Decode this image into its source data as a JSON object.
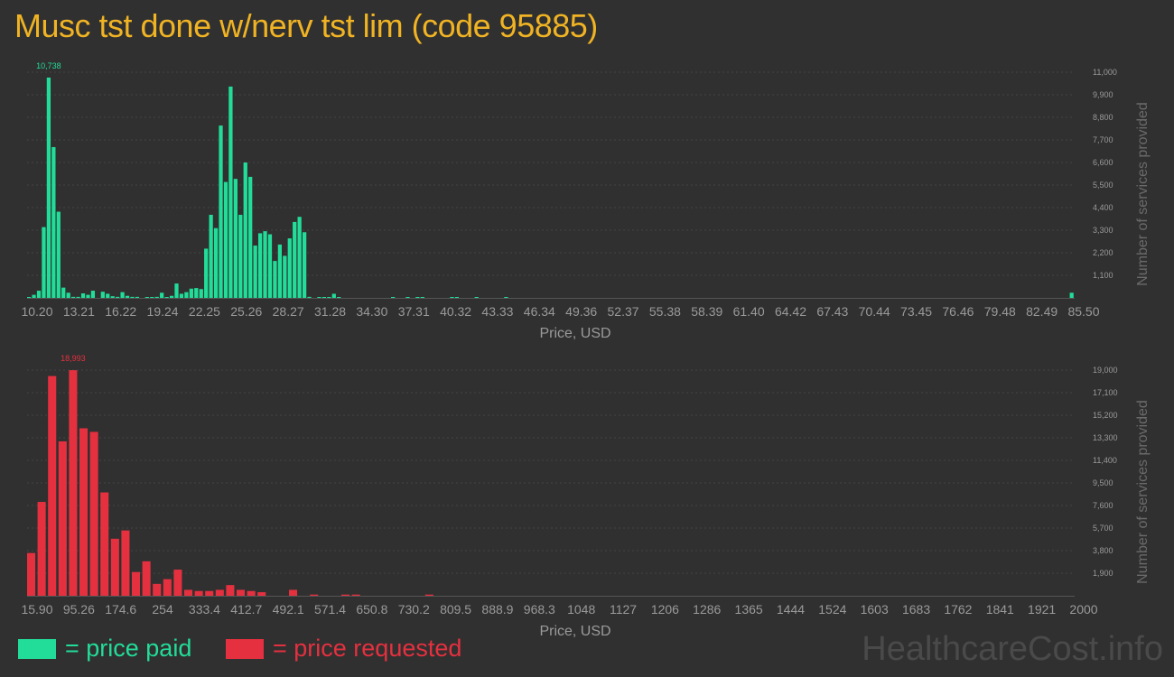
{
  "title": "Musc tst done w/nerv tst lim (code 95885)",
  "legend": {
    "paid_label": "= price paid",
    "requested_label": "= price requested"
  },
  "watermark": "HealthcareCost.info",
  "colors": {
    "background": "#303030",
    "title": "#f0b323",
    "paid": "#22dd99",
    "requested": "#e5303f",
    "axis_text": "#9a9a9a",
    "grid": "#444444"
  },
  "chart_data": [
    {
      "type": "bar",
      "name": "paid",
      "xlabel": "Price, USD",
      "ylabel": "Number of services provided",
      "ylim": [
        0,
        11000
      ],
      "y_ticks": [
        "1,100",
        "2,200",
        "3,300",
        "4,400",
        "5,500",
        "6,600",
        "7,700",
        "8,800",
        "9,900",
        "11,000"
      ],
      "x_ticks": [
        "10.20",
        "13.21",
        "16.22",
        "19.24",
        "22.25",
        "25.26",
        "28.27",
        "31.28",
        "34.30",
        "37.31",
        "40.32",
        "43.33",
        "46.34",
        "49.36",
        "52.37",
        "55.38",
        "58.39",
        "61.40",
        "64.42",
        "67.43",
        "70.44",
        "73.45",
        "76.46",
        "79.48",
        "82.49",
        "85.50"
      ],
      "peak_label": "10,738",
      "values": [
        40,
        150,
        350,
        3450,
        10738,
        7350,
        4200,
        500,
        250,
        50,
        50,
        220,
        150,
        350,
        0,
        300,
        200,
        80,
        50,
        280,
        100,
        50,
        50,
        0,
        40,
        40,
        50,
        250,
        40,
        100,
        700,
        200,
        280,
        450,
        480,
        430,
        2400,
        4050,
        3400,
        8400,
        5650,
        10300,
        5800,
        4050,
        6600,
        5900,
        2550,
        3150,
        3250,
        3100,
        1800,
        2600,
        2050,
        2900,
        3700,
        3950,
        3200,
        50,
        0,
        30,
        30,
        40,
        200,
        20,
        0,
        0,
        0,
        0,
        0,
        0,
        0,
        0,
        0,
        0,
        20,
        0,
        0,
        20,
        0,
        30,
        30,
        0,
        0,
        0,
        0,
        0,
        30,
        30,
        0,
        0,
        0,
        30,
        0,
        0,
        0,
        0,
        0,
        30,
        0,
        0,
        0,
        0,
        0,
        0,
        0,
        0,
        0,
        0,
        0,
        0,
        0,
        0,
        0,
        0,
        0,
        0,
        0,
        0,
        0,
        0,
        0,
        0,
        0,
        0,
        0,
        0,
        0,
        0,
        0,
        0,
        0,
        0,
        0,
        0,
        0,
        0,
        0,
        0,
        0,
        0,
        0,
        0,
        0,
        0,
        0,
        0,
        0,
        0,
        0,
        0,
        0,
        0,
        0,
        0,
        0,
        0,
        0,
        0,
        0,
        0,
        0,
        0,
        0,
        0,
        0,
        0,
        0,
        0,
        0,
        0,
        0,
        0,
        0,
        0,
        0,
        0,
        0,
        0,
        0,
        0,
        0,
        0,
        0,
        0,
        0,
        0,
        0,
        0,
        0,
        0,
        0,
        0,
        0,
        0,
        0,
        0,
        0,
        0,
        0,
        0,
        0,
        0,
        0,
        0,
        0,
        0,
        0,
        0,
        0,
        0,
        0,
        0,
        250
      ]
    },
    {
      "type": "bar",
      "name": "requested",
      "xlabel": "Price, USD",
      "ylabel": "Number of services provided",
      "ylim": [
        0,
        19000
      ],
      "y_ticks": [
        "1,900",
        "3,800",
        "5,700",
        "7,600",
        "9,500",
        "11,400",
        "13,300",
        "15,200",
        "17,100",
        "19,000"
      ],
      "x_ticks": [
        "15.90",
        "95.26",
        "174.6",
        "254",
        "333.4",
        "412.7",
        "492.1",
        "571.4",
        "650.8",
        "730.2",
        "809.5",
        "888.9",
        "968.3",
        "1048",
        "1127",
        "1206",
        "1286",
        "1365",
        "1444",
        "1524",
        "1603",
        "1683",
        "1762",
        "1841",
        "1921",
        "2000"
      ],
      "peak_label": "18,993",
      "values": [
        3600,
        7900,
        18500,
        13000,
        18993,
        14100,
        13800,
        8700,
        4800,
        5500,
        2000,
        2900,
        1000,
        1400,
        2200,
        500,
        400,
        400,
        500,
        900,
        500,
        400,
        300,
        0,
        0,
        500,
        0,
        100,
        0,
        0,
        100,
        100,
        0,
        0,
        0,
        0,
        0,
        0,
        100,
        0,
        0,
        0,
        0,
        0,
        0,
        0,
        0,
        0,
        0,
        0,
        0,
        0,
        0,
        0,
        0,
        0,
        0,
        0,
        0,
        0,
        0,
        0,
        0,
        0,
        0,
        0,
        0,
        0,
        0,
        0,
        0,
        0,
        0,
        0,
        0,
        0,
        0,
        0,
        0,
        0,
        0,
        0,
        0,
        0,
        0,
        0,
        0,
        0,
        0,
        0,
        0,
        0,
        0,
        0,
        0,
        0,
        0,
        0,
        0,
        0
      ]
    }
  ]
}
